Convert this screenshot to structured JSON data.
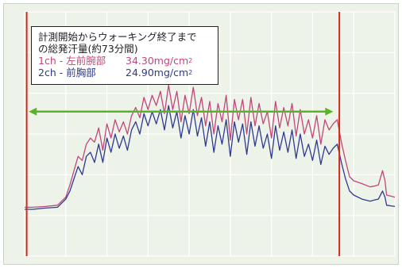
{
  "legend": {
    "title_line1": "計測開始からウォーキング終了まで",
    "title_line2": "の総発汗量(約73分間)",
    "series": [
      {
        "name": "1ch - 左前腕部",
        "total": "34.30mg/cm",
        "unit_sup": "2",
        "color": "#c0477a"
      },
      {
        "name": "2ch - 前胸部",
        "total": "24.90mg/cm",
        "unit_sup": "2",
        "color": "#2f3a8f"
      }
    ]
  },
  "colors": {
    "background": "#eef3ea",
    "grid": "#ffffff",
    "marker": "#d42a1c",
    "arrow": "#59b327",
    "series1": "#c0477a",
    "series2": "#2f3a8f"
  },
  "chart_data": {
    "type": "line",
    "x_unit": "minutes",
    "xlim": [
      0,
      90
    ],
    "ylim": [
      0,
      6
    ],
    "grid": true,
    "markers": [
      {
        "type": "vertical-line",
        "x": 0.5,
        "color": "#d42a1c"
      },
      {
        "type": "vertical-line",
        "x": 76.5,
        "color": "#d42a1c"
      },
      {
        "type": "double-arrow",
        "x_start": 1,
        "x_end": 75,
        "y": 3.55,
        "color": "#59b327"
      }
    ],
    "series": [
      {
        "id": "1ch",
        "color": "#c0477a",
        "points": [
          [
            0,
            1.2
          ],
          [
            2,
            1.2
          ],
          [
            5,
            1.22
          ],
          [
            8,
            1.25
          ],
          [
            10,
            1.45
          ],
          [
            11,
            1.75
          ],
          [
            12,
            2.1
          ],
          [
            13,
            2.45
          ],
          [
            14,
            2.35
          ],
          [
            15,
            2.75
          ],
          [
            16,
            2.9
          ],
          [
            17,
            2.8
          ],
          [
            18,
            3.15
          ],
          [
            19,
            2.6
          ],
          [
            20,
            3.25
          ],
          [
            21,
            2.9
          ],
          [
            22,
            3.35
          ],
          [
            23,
            3.05
          ],
          [
            24,
            3.3
          ],
          [
            25,
            3.0
          ],
          [
            26,
            3.45
          ],
          [
            27,
            3.65
          ],
          [
            28,
            3.4
          ],
          [
            29,
            3.9
          ],
          [
            30,
            3.6
          ],
          [
            31,
            3.95
          ],
          [
            32,
            3.7
          ],
          [
            33,
            4.05
          ],
          [
            34,
            3.5
          ],
          [
            35,
            4.2
          ],
          [
            36,
            3.6
          ],
          [
            37,
            4.05
          ],
          [
            38,
            3.3
          ],
          [
            39,
            3.95
          ],
          [
            40,
            3.5
          ],
          [
            41,
            4.15
          ],
          [
            42,
            3.45
          ],
          [
            43,
            3.9
          ],
          [
            44,
            3.2
          ],
          [
            45,
            3.8
          ],
          [
            46,
            3.0
          ],
          [
            47,
            3.75
          ],
          [
            48,
            3.3
          ],
          [
            49,
            3.95
          ],
          [
            50,
            2.85
          ],
          [
            51,
            3.85
          ],
          [
            52,
            3.35
          ],
          [
            53,
            3.85
          ],
          [
            54,
            3.0
          ],
          [
            55,
            3.9
          ],
          [
            56,
            3.2
          ],
          [
            57,
            3.75
          ],
          [
            58,
            3.25
          ],
          [
            59,
            3.55
          ],
          [
            60,
            2.9
          ],
          [
            61,
            3.8
          ],
          [
            62,
            3.15
          ],
          [
            63,
            3.65
          ],
          [
            64,
            3.2
          ],
          [
            65,
            3.75
          ],
          [
            66,
            2.95
          ],
          [
            67,
            3.6
          ],
          [
            68,
            3.0
          ],
          [
            69,
            3.35
          ],
          [
            70,
            2.9
          ],
          [
            71,
            3.45
          ],
          [
            72,
            2.75
          ],
          [
            73,
            3.35
          ],
          [
            74,
            3.1
          ],
          [
            75,
            3.25
          ],
          [
            76,
            3.35
          ],
          [
            77,
            2.8
          ],
          [
            78,
            2.35
          ],
          [
            79,
            1.95
          ],
          [
            80,
            1.85
          ],
          [
            82,
            1.78
          ],
          [
            84,
            1.7
          ],
          [
            85,
            1.72
          ],
          [
            86,
            1.75
          ],
          [
            87,
            2.1
          ],
          [
            87.6,
            1.85
          ],
          [
            88,
            1.5
          ],
          [
            90,
            1.45
          ]
        ]
      },
      {
        "id": "2ch",
        "color": "#2f3a8f",
        "points": [
          [
            0,
            1.15
          ],
          [
            2,
            1.15
          ],
          [
            5,
            1.18
          ],
          [
            8,
            1.2
          ],
          [
            10,
            1.4
          ],
          [
            11,
            1.6
          ],
          [
            12,
            1.9
          ],
          [
            13,
            2.2
          ],
          [
            14,
            2.0
          ],
          [
            15,
            2.45
          ],
          [
            16,
            2.55
          ],
          [
            17,
            2.3
          ],
          [
            18,
            2.75
          ],
          [
            19,
            2.3
          ],
          [
            20,
            2.9
          ],
          [
            21,
            2.55
          ],
          [
            22,
            3.0
          ],
          [
            23,
            2.65
          ],
          [
            24,
            2.95
          ],
          [
            25,
            2.6
          ],
          [
            26,
            3.1
          ],
          [
            27,
            3.3
          ],
          [
            28,
            3.0
          ],
          [
            29,
            3.5
          ],
          [
            30,
            3.2
          ],
          [
            31,
            3.55
          ],
          [
            32,
            3.25
          ],
          [
            33,
            3.6
          ],
          [
            34,
            3.1
          ],
          [
            35,
            3.7
          ],
          [
            36,
            3.15
          ],
          [
            37,
            3.55
          ],
          [
            38,
            2.9
          ],
          [
            39,
            3.45
          ],
          [
            40,
            3.0
          ],
          [
            41,
            3.6
          ],
          [
            42,
            2.95
          ],
          [
            43,
            3.4
          ],
          [
            44,
            2.7
          ],
          [
            45,
            3.3
          ],
          [
            46,
            2.55
          ],
          [
            47,
            3.2
          ],
          [
            48,
            2.75
          ],
          [
            49,
            3.35
          ],
          [
            50,
            2.45
          ],
          [
            51,
            3.3
          ],
          [
            52,
            2.8
          ],
          [
            53,
            3.25
          ],
          [
            54,
            2.5
          ],
          [
            55,
            3.3
          ],
          [
            56,
            2.7
          ],
          [
            57,
            3.2
          ],
          [
            58,
            2.65
          ],
          [
            59,
            3.0
          ],
          [
            60,
            2.4
          ],
          [
            61,
            3.2
          ],
          [
            62,
            2.6
          ],
          [
            63,
            3.05
          ],
          [
            64,
            2.55
          ],
          [
            65,
            3.1
          ],
          [
            66,
            2.4
          ],
          [
            67,
            3.0
          ],
          [
            68,
            2.45
          ],
          [
            69,
            2.75
          ],
          [
            70,
            2.35
          ],
          [
            71,
            2.85
          ],
          [
            72,
            2.25
          ],
          [
            73,
            2.7
          ],
          [
            74,
            2.5
          ],
          [
            75,
            2.65
          ],
          [
            76,
            2.75
          ],
          [
            77,
            2.3
          ],
          [
            78,
            1.9
          ],
          [
            79,
            1.6
          ],
          [
            80,
            1.5
          ],
          [
            82,
            1.4
          ],
          [
            84,
            1.35
          ],
          [
            85,
            1.38
          ],
          [
            86,
            1.4
          ],
          [
            87,
            1.6
          ],
          [
            87.6,
            1.45
          ],
          [
            88,
            1.25
          ],
          [
            90,
            1.22
          ]
        ]
      }
    ]
  }
}
